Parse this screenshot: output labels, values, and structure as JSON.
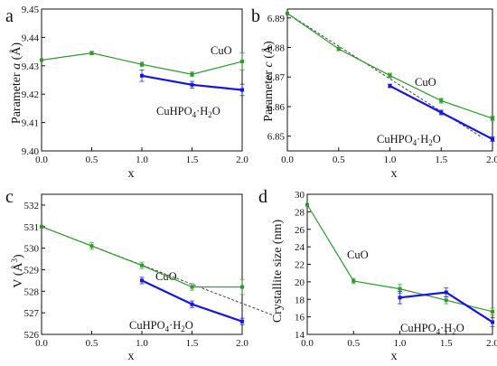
{
  "colors": {
    "CuO": "#2e9a2e",
    "CuHPO4": "#1414e6",
    "fit": "#444444",
    "axis": "#111111"
  },
  "chart_data": [
    {
      "type": "line",
      "panel": "a",
      "xlabel": "x",
      "ylabel": "Parameter a (Å)",
      "xlim": [
        0.0,
        2.0
      ],
      "ylim": [
        9.4,
        9.45
      ],
      "xticks": [
        "0.0",
        "0.5",
        "1.0",
        "1.5",
        "2.0"
      ],
      "yticks": [
        "9.40",
        "9.41",
        "9.42",
        "9.43",
        "9.44",
        "9.45"
      ],
      "series": [
        {
          "name": "CuO",
          "color": "#2e9a2e",
          "x": [
            0.0,
            0.5,
            1.0,
            1.5,
            2.0
          ],
          "y": [
            9.432,
            9.4345,
            9.4305,
            9.427,
            9.4315
          ],
          "err": [
            0,
            0.0006,
            0.0008,
            0.0008,
            0.003
          ]
        },
        {
          "name": "CuHPO4·H2O",
          "color": "#1414e6",
          "x": [
            1.0,
            1.5,
            2.0
          ],
          "y": [
            9.4265,
            9.4233,
            9.4215
          ],
          "err": [
            0.002,
            0.0012,
            0.002
          ]
        }
      ]
    },
    {
      "type": "line",
      "panel": "b",
      "xlabel": "x",
      "ylabel": "Parameter c (Å)",
      "xlim": [
        0.0,
        2.0
      ],
      "ylim": [
        6.845,
        6.893
      ],
      "xticks": [
        "0.0",
        "0.5",
        "1.0",
        "1.5",
        "2.0"
      ],
      "yticks": [
        "6.85",
        "6.86",
        "6.87",
        "6.88",
        "6.89"
      ],
      "series": [
        {
          "name": "CuO",
          "color": "#2e9a2e",
          "x": [
            0.0,
            0.5,
            1.0,
            1.5,
            2.0
          ],
          "y": [
            6.8915,
            6.8795,
            6.8705,
            6.862,
            6.856
          ],
          "err": [
            0,
            0.0006,
            0.0008,
            0.0008,
            0.0008
          ]
        },
        {
          "name": "CuHPO4·H2O",
          "color": "#1414e6",
          "x": [
            1.0,
            1.5,
            2.0
          ],
          "y": [
            6.867,
            6.858,
            6.849
          ],
          "err": [
            0.0006,
            0.0008,
            0.0008
          ]
        }
      ],
      "trend": {
        "x": [
          0.0,
          1.9
        ],
        "y": [
          6.8915,
          6.8495
        ]
      }
    },
    {
      "type": "line",
      "panel": "c",
      "xlabel": "x",
      "ylabel": "V (Å³)",
      "xlim": [
        0.0,
        2.0
      ],
      "ylim": [
        526.0,
        532.5
      ],
      "xticks": [
        "0.0",
        "0.5",
        "1.0",
        "1.5",
        "2.0"
      ],
      "yticks": [
        "526",
        "527",
        "528",
        "529",
        "530",
        "531",
        "532"
      ],
      "series": [
        {
          "name": "CuO",
          "color": "#2e9a2e",
          "x": [
            0.0,
            0.5,
            1.0,
            1.5,
            2.0
          ],
          "y": [
            531.0,
            530.1,
            529.2,
            528.2,
            528.2
          ],
          "err": [
            0,
            0.15,
            0.15,
            0.15,
            0.35
          ]
        },
        {
          "name": "CuHPO4·H2O",
          "color": "#1414e6",
          "x": [
            1.0,
            1.5,
            2.0
          ],
          "y": [
            528.5,
            527.4,
            526.6
          ],
          "err": [
            0.15,
            0.15,
            0.15
          ]
        }
      ],
      "trend": {
        "x": [
          0.0,
          2.3
        ],
        "y": [
          531.0,
          526.9
        ]
      }
    },
    {
      "type": "line",
      "panel": "d",
      "xlabel": "x",
      "ylabel": "Crystallite size (nm)",
      "xlim": [
        0.0,
        2.0
      ],
      "ylim": [
        14,
        30
      ],
      "xticks": [
        "0.0",
        "0.5",
        "1.0",
        "1.5",
        "2.0"
      ],
      "yticks": [
        "14",
        "16",
        "18",
        "20",
        "22",
        "24",
        "26",
        "28",
        "30"
      ],
      "series": [
        {
          "name": "CuO",
          "color": "#2e9a2e",
          "x": [
            0.0,
            0.5,
            1.0,
            1.5,
            2.0
          ],
          "y": [
            28.8,
            20.1,
            19.2,
            17.9,
            16.6
          ],
          "err": [
            0,
            0.3,
            0.5,
            0.4,
            0.4
          ]
        },
        {
          "name": "CuHPO4·H2O",
          "color": "#1414e6",
          "x": [
            1.0,
            1.5,
            2.0
          ],
          "y": [
            18.2,
            18.8,
            15.4
          ],
          "err": [
            0.7,
            0.5,
            0.5
          ]
        }
      ]
    }
  ]
}
